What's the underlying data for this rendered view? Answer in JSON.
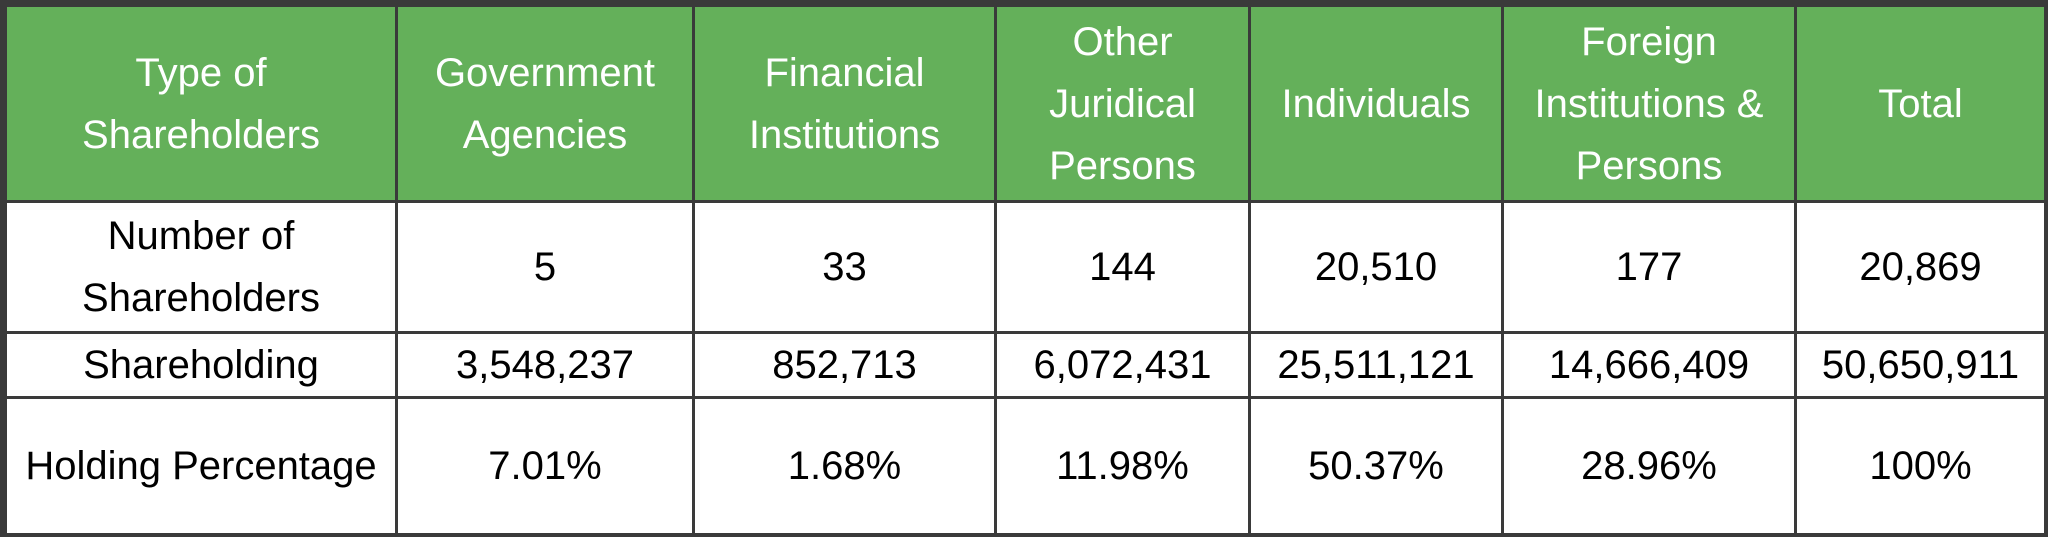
{
  "colors": {
    "header_background": "#64b05a",
    "header_text": "#ffffff",
    "border": "#3a3a3a",
    "body_text": "#000000"
  },
  "table": {
    "headers": [
      [
        "Type of",
        "Shareholders"
      ],
      [
        "Government",
        "Agencies"
      ],
      [
        "Financial",
        "Institutions"
      ],
      [
        "Other",
        "Juridical",
        "Persons"
      ],
      [
        "Individuals"
      ],
      [
        "Foreign",
        "Institutions &",
        "Persons"
      ],
      [
        "Total"
      ]
    ],
    "rows": [
      {
        "label": [
          "Number of",
          "Shareholders"
        ],
        "values": [
          "5",
          "33",
          "144",
          "20,510",
          "177",
          "20,869"
        ]
      },
      {
        "label": [
          "Shareholding"
        ],
        "values": [
          "3,548,237",
          "852,713",
          "6,072,431",
          "25,511,121",
          "14,666,409",
          "50,650,911"
        ]
      },
      {
        "label": [
          "Holding Percentage"
        ],
        "values": [
          "7.01%",
          "1.68%",
          "11.98%",
          "50.37%",
          "28.96%",
          "100%"
        ]
      }
    ]
  }
}
